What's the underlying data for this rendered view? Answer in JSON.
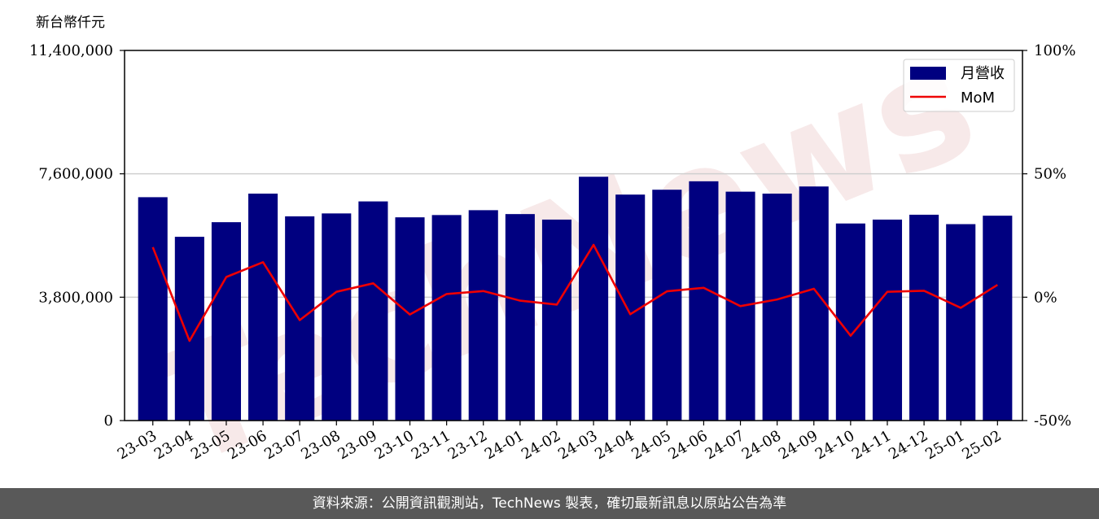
{
  "chart_data": {
    "type": "bar",
    "y_unit_label": "新台幣仟元",
    "categories": [
      "23-03",
      "23-04",
      "23-05",
      "23-06",
      "23-07",
      "23-08",
      "23-09",
      "23-10",
      "23-11",
      "23-12",
      "24-01",
      "24-02",
      "24-03",
      "24-04",
      "24-05",
      "24-06",
      "24-07",
      "24-08",
      "24-09",
      "24-10",
      "24-11",
      "24-12",
      "25-01",
      "25-02"
    ],
    "series": [
      {
        "name": "月營收",
        "type": "bar",
        "axis": "left",
        "color": "#000080",
        "values": [
          6880000,
          5660000,
          6110000,
          6990000,
          6290000,
          6380000,
          6750000,
          6260000,
          6330000,
          6480000,
          6360000,
          6190000,
          7510000,
          6960000,
          7110000,
          7370000,
          7050000,
          6990000,
          7210000,
          6070000,
          6190000,
          6340000,
          6050000,
          6310000
        ]
      },
      {
        "name": "MoM",
        "type": "line",
        "axis": "right",
        "color": "#ee0000",
        "values": [
          20.3,
          -17.7,
          8.2,
          14.2,
          -9.3,
          2.2,
          5.6,
          -7.0,
          1.3,
          2.5,
          -1.4,
          -3.0,
          21.2,
          -6.9,
          2.4,
          3.8,
          -3.6,
          -0.9,
          3.4,
          -15.6,
          2.2,
          2.6,
          -4.3,
          5.0
        ]
      }
    ],
    "left_axis": {
      "min": 0,
      "max": 11400000,
      "ticks": [
        "0",
        "3,800,000",
        "7,600,000",
        "11,400,000"
      ],
      "tick_values": [
        0,
        3800000,
        7600000,
        11400000
      ]
    },
    "right_axis": {
      "min": -50,
      "max": 100,
      "ticks": [
        "-50%",
        "0%",
        "50%",
        "100%"
      ],
      "tick_values": [
        -50,
        0,
        50,
        100
      ]
    },
    "grid": "horizontal",
    "legend_placement": "top-right",
    "watermark": "TechNews"
  },
  "footer": {
    "text": "資料來源：公開資訊觀測站，TechNews 製表，確切最新訊息以原站公告為準"
  }
}
